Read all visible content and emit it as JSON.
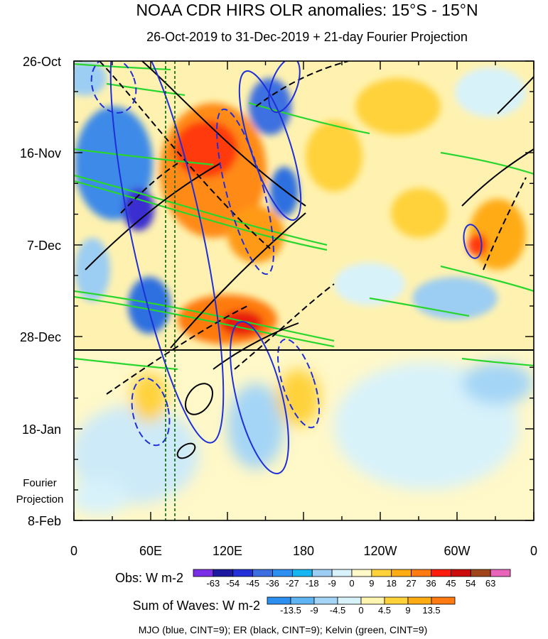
{
  "chart_data": {
    "type": "heatmap",
    "title": "NOAA CDR HIRS OLR anomalies: 15°S - 15°N",
    "subtitle": "26-Oct-2019 to 31-Dec-2019 + 21-day Fourier Projection",
    "x_ticks": [
      "0",
      "60E",
      "120E",
      "180",
      "120W",
      "60W",
      "0"
    ],
    "y_ticks": [
      "26-Oct",
      "16-Nov",
      "7-Dec",
      "28-Dec",
      "18-Jan",
      "8-Feb"
    ],
    "projection_label_1": "Fourier",
    "projection_label_2": "Projection",
    "observation_end_date": "31-Dec-2019",
    "obs_colorbar": {
      "label": "Obs: W m-2",
      "ticks": [
        "-63",
        "-54",
        "-45",
        "-36",
        "-27",
        "-18",
        "-9",
        "0",
        "9",
        "18",
        "27",
        "36",
        "45",
        "54",
        "63"
      ],
      "colors": [
        "#7a2ee6",
        "#1d1aa0",
        "#2430d8",
        "#3e6fe0",
        "#2d90f0",
        "#16b6f0",
        "#9ccdf2",
        "#d8f2fa",
        "#fff9c8",
        "#ffd23a",
        "#ffab14",
        "#ff7a10",
        "#ff1c0c",
        "#cc0c0c",
        "#a0461a",
        "#e864b8"
      ]
    },
    "waves_colorbar": {
      "label": "Sum of Waves: W m-2",
      "ticks": [
        "-13.5",
        "-9",
        "-4.5",
        "0",
        "4.5",
        "9",
        "13.5"
      ],
      "colors": [
        "#2d90f0",
        "#5fb4f4",
        "#a4d5f6",
        "#d8f2fa",
        "#fff4b0",
        "#ffd23a",
        "#ffab14",
        "#ff7a10"
      ]
    },
    "footnote": "MJO (blue, CINT=9); ER (black, CINT=9); Kelvin (green, CINT=9)",
    "series": [
      {
        "name": "MJO",
        "color": "#1f2fd8"
      },
      {
        "name": "ER",
        "color": "#000000"
      },
      {
        "name": "Kelvin",
        "color": "#29d62e"
      }
    ]
  }
}
